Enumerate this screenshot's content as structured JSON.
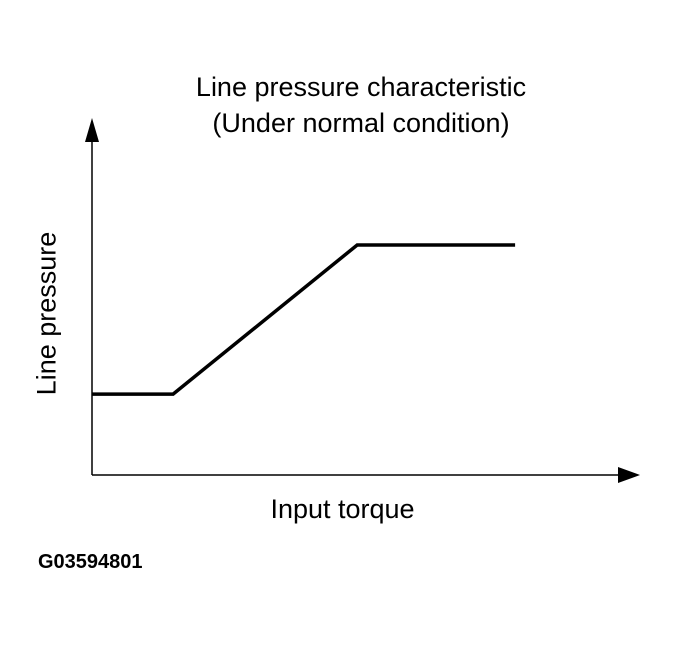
{
  "chart_data": {
    "type": "line",
    "title": "Line pressure characteristic",
    "subtitle": "(Under normal condition)",
    "xlabel": "Input torque",
    "ylabel": "Line pressure",
    "xlim": [
      0,
      100
    ],
    "ylim": [
      0,
      100
    ],
    "grid": false,
    "series": [
      {
        "x": [
          0,
          14.8,
          48.4,
          77.2
        ],
        "y": [
          22.8,
          22.8,
          64.8,
          64.8
        ],
        "color": "#000000"
      }
    ]
  },
  "figure_code": "G03594801"
}
